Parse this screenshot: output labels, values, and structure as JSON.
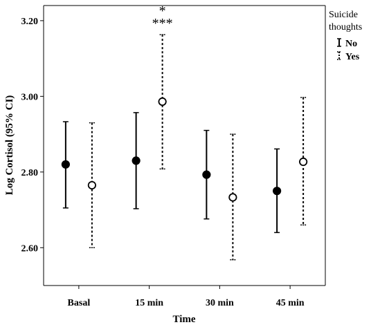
{
  "chart_data": {
    "type": "errorbar",
    "title": "",
    "xlabel": "Time",
    "ylabel": "Log Cortisol (95% CI)",
    "categories": [
      "Basal",
      "15 min",
      "30 min",
      "45 min"
    ],
    "ylim": [
      2.5,
      3.24
    ],
    "yticks": [
      "2.60",
      "2.80",
      "3.00",
      "3.20"
    ],
    "ytick_values": [
      2.6,
      2.8,
      3.0,
      3.2
    ],
    "legend_title": [
      "Suicide",
      "thoughts"
    ],
    "legend_position": "top-right, outside plot",
    "series": [
      {
        "name": "No",
        "marker": "filled-circle",
        "line_style": "solid",
        "mean": [
          2.82,
          2.83,
          2.793,
          2.75
        ],
        "lower": [
          2.705,
          2.703,
          2.676,
          2.64
        ],
        "upper": [
          2.933,
          2.957,
          2.91,
          2.861
        ]
      },
      {
        "name": "Yes",
        "marker": "open-circle",
        "line_style": "dashed",
        "mean": [
          2.765,
          2.986,
          2.733,
          2.827
        ],
        "lower": [
          2.6,
          2.808,
          2.568,
          2.66
        ],
        "upper": [
          2.93,
          3.163,
          2.9,
          2.997
        ]
      }
    ],
    "annotations": [
      {
        "category": "15 min",
        "lines": [
          "*",
          "***"
        ]
      }
    ]
  },
  "colors": {
    "axis": "#000000",
    "marker": "#000000",
    "background": "#ffffff"
  }
}
